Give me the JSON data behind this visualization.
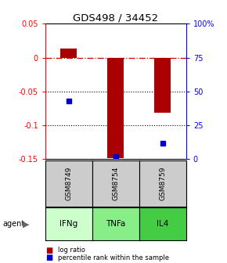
{
  "title": "GDS498 / 34452",
  "samples": [
    "GSM8749",
    "GSM8754",
    "GSM8759"
  ],
  "agents": [
    "IFNg",
    "TNFa",
    "IL4"
  ],
  "log_ratios": [
    0.013,
    -0.148,
    -0.082
  ],
  "percentile_ranks": [
    0.43,
    0.02,
    0.12
  ],
  "ylim_left": [
    -0.15,
    0.05
  ],
  "ylim_right": [
    0.0,
    1.0
  ],
  "yticks_left": [
    0.05,
    0.0,
    -0.05,
    -0.1,
    -0.15
  ],
  "yticks_left_labels": [
    "0.05",
    "0",
    "-0.05",
    "-0.1",
    "-0.15"
  ],
  "yticks_right": [
    1.0,
    0.75,
    0.5,
    0.25,
    0.0
  ],
  "yticks_right_labels": [
    "100%",
    "75",
    "50",
    "25",
    "0"
  ],
  "bar_color": "#aa0000",
  "dot_color": "#0000cc",
  "agent_colors": [
    "#ccffcc",
    "#88ee88",
    "#44cc44"
  ],
  "sample_bg_color": "#cccccc",
  "hline_zero_color": "#cc0000",
  "hline_dotted_color": "#000000",
  "bar_width": 0.35
}
